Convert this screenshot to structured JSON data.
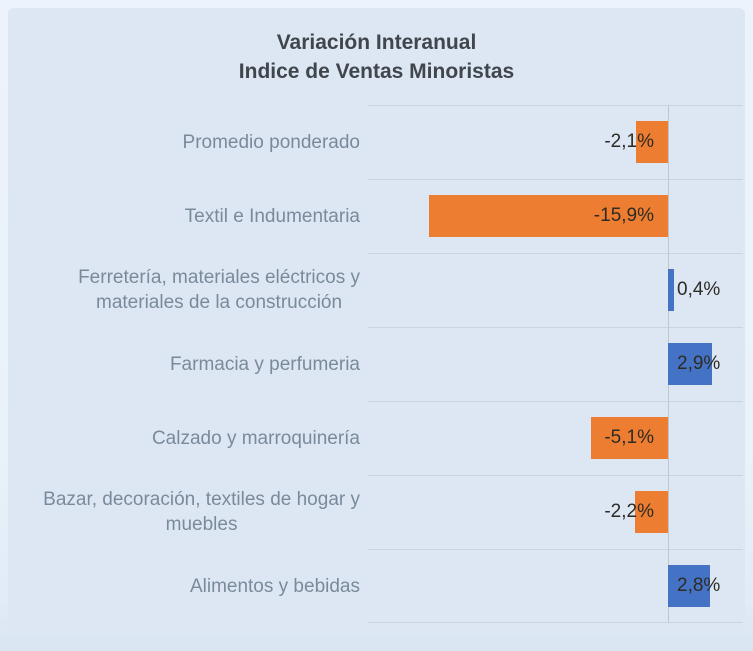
{
  "chart_data": {
    "type": "bar",
    "orientation": "horizontal",
    "title_lines": [
      "Variación Interanual",
      "Indice de Ventas Minoristas"
    ],
    "categories": [
      [
        "Promedio ponderado"
      ],
      [
        "Textil e Indumentaria"
      ],
      [
        "Ferretería, materiales eléctricos y",
        "materiales de la construcción"
      ],
      [
        "Farmacia y perfumeria"
      ],
      [
        "Calzado y marroquinería"
      ],
      [
        "Bazar, decoración, textiles de hogar y",
        "muebles"
      ],
      [
        "Alimentos y bebidas"
      ]
    ],
    "values": [
      -2.1,
      -15.9,
      0.4,
      2.9,
      -5.1,
      -2.2,
      2.8
    ],
    "value_labels": [
      "-2,1%",
      "-15,9%",
      "0,4%",
      "2,9%",
      "-5,1%",
      "-2,2%",
      "2,8%"
    ],
    "xlim": [
      -20,
      5
    ],
    "grid": true,
    "legend": "none",
    "colors": {
      "negative_bar": "#ED7D31",
      "positive_bar": "#4472C4",
      "chart_background": "#DCE7F3",
      "outer_background": "#E9F1FA",
      "title_text": "#40464C",
      "category_text": "#7B8A9B",
      "value_text": "#2E2B26"
    }
  }
}
